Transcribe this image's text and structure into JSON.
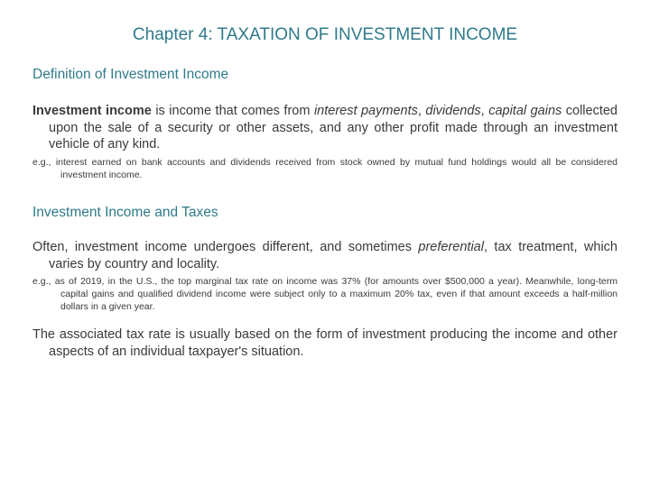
{
  "colors": {
    "heading": "#2f7a8a",
    "body": "#3a3a3a",
    "background": "#ffffff"
  },
  "typography": {
    "title_fontsize": 19,
    "heading_fontsize": 15.5,
    "body_fontsize": 14.5,
    "eg_fontsize": 10.5,
    "font_family": "Arial"
  },
  "chapter_title": "Chapter 4: TAXATION OF INVESTMENT INCOME",
  "section1": {
    "heading": "Definition of Investment Income",
    "para_lead_bold": "Investment income",
    "para_mid1": " is income that comes from ",
    "para_it1": "interest payments",
    "para_sep1": ", ",
    "para_it2": "dividends",
    "para_sep2": ", ",
    "para_it3": "capital gains",
    "para_tail": " collected upon the sale of a security or other assets, and any other profit made through an investment vehicle of any kind.",
    "eg": "e.g., interest earned on bank accounts and dividends received from stock owned by mutual fund holdings would all be considered investment income."
  },
  "section2": {
    "heading": "Investment Income and Taxes",
    "para1_a": "Often, investment income undergoes different, and sometimes ",
    "para1_it": "preferential",
    "para1_b": ", tax treatment, which varies by country and locality.",
    "eg": "e.g., as of 2019, in the U.S., the top marginal tax rate on income was 37% (for amounts over $500,000 a year). Meanwhile, long-term capital gains and qualified dividend income were subject only to a maximum 20% tax, even if that amount exceeds a half-million dollars in a given year.",
    "para2": "The associated tax rate is usually based on the form of investment producing the income and other aspects of an individual taxpayer's situation."
  }
}
